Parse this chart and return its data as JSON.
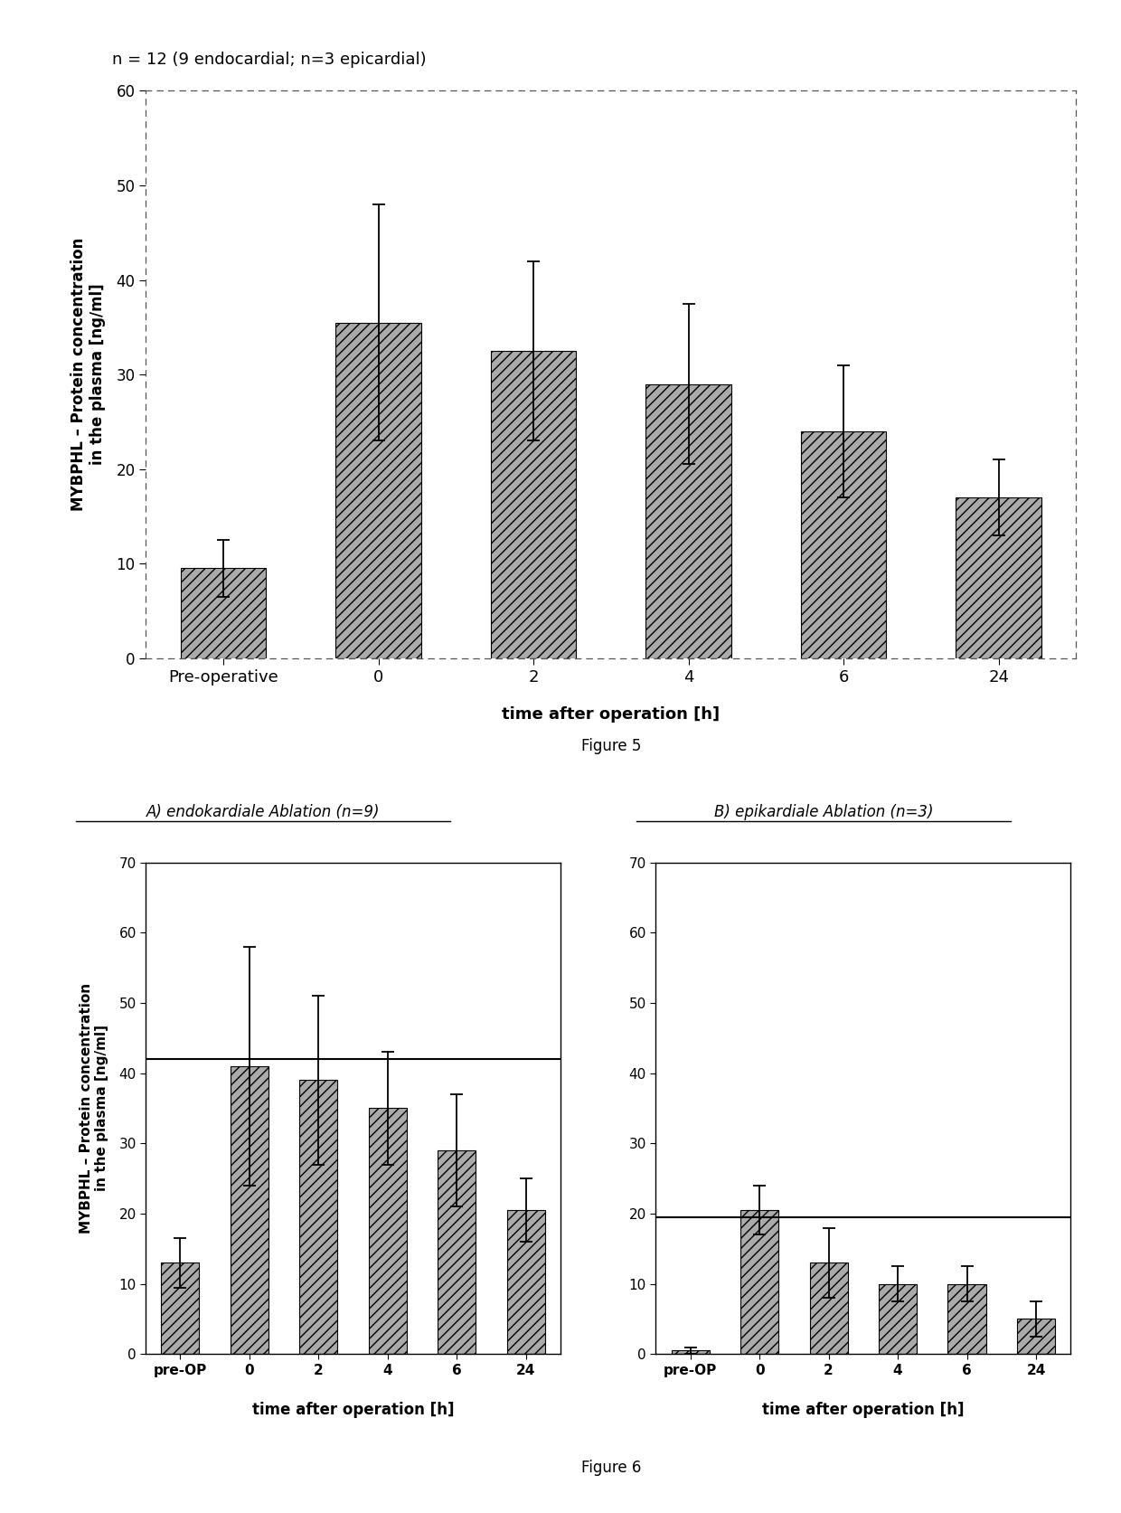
{
  "fig5": {
    "note": "n = 12 (9 endocardial; n=3 epicardial)",
    "categories": [
      "Pre-operative",
      "0",
      "2",
      "4",
      "6",
      "24"
    ],
    "values": [
      9.5,
      35.5,
      32.5,
      29.0,
      24.0,
      17.0
    ],
    "errors": [
      3.0,
      12.5,
      9.5,
      8.5,
      7.0,
      4.0
    ],
    "ylabel": "MYBPHL – Protein concentration\nin the plasma [ng/ml]",
    "xlabel": "time after operation [h]",
    "figure_label": "Figure 5",
    "ylim": [
      0,
      60
    ],
    "yticks": [
      0,
      10,
      20,
      30,
      40,
      50,
      60
    ],
    "bar_color": "#aaaaaa",
    "bar_hatch": "///",
    "bar_width": 0.55
  },
  "fig6": {
    "title_A": "A) endokardiale Ablation (n=9)",
    "title_B": "B) epikardiale Ablation (n=3)",
    "categories": [
      "pre-OP",
      "0",
      "2",
      "4",
      "6",
      "24"
    ],
    "values_A": [
      13.0,
      41.0,
      39.0,
      35.0,
      29.0,
      20.5
    ],
    "errors_A": [
      3.5,
      17.0,
      12.0,
      8.0,
      8.0,
      4.5
    ],
    "hline_A": 42.0,
    "values_B": [
      0.5,
      20.5,
      13.0,
      10.0,
      10.0,
      5.0
    ],
    "errors_B": [
      0.5,
      3.5,
      5.0,
      2.5,
      2.5,
      2.5
    ],
    "hline_B": 19.5,
    "ylabel": "MYBPHL – Protein concentration\nin the plasma [ng/ml]",
    "xlabel_A": "time after operation [h]",
    "xlabel_B": "time after operation [h]",
    "figure_label": "Figure 6",
    "ylim": [
      0,
      70
    ],
    "yticks": [
      0,
      10,
      20,
      30,
      40,
      50,
      60,
      70
    ],
    "bar_color": "#aaaaaa",
    "bar_hatch": "///",
    "bar_width": 0.55
  },
  "bg": "#ffffff"
}
